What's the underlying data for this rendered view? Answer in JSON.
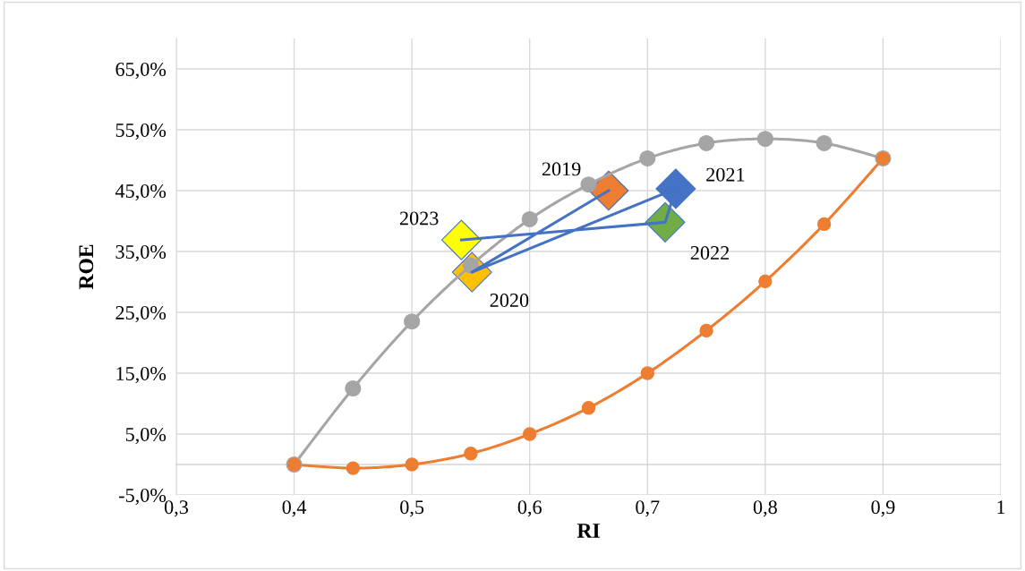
{
  "chart_data": {
    "type": "line",
    "xlabel": "RI",
    "ylabel": "ROE",
    "xlim": [
      0.3,
      1.0
    ],
    "ylim": [
      -5,
      70
    ],
    "xticks": [
      {
        "value": 0.3,
        "label": "0,3"
      },
      {
        "value": 0.4,
        "label": "0,4"
      },
      {
        "value": 0.5,
        "label": "0,5"
      },
      {
        "value": 0.6,
        "label": "0,6"
      },
      {
        "value": 0.7,
        "label": "0,7"
      },
      {
        "value": 0.8,
        "label": "0,8"
      },
      {
        "value": 0.9,
        "label": "0,9"
      },
      {
        "value": 1.0,
        "label": "1"
      }
    ],
    "yticks": [
      {
        "value": -5,
        "label": "-5,0%"
      },
      {
        "value": 5,
        "label": "5,0%"
      },
      {
        "value": 15,
        "label": "15,0%"
      },
      {
        "value": 25,
        "label": "25,0%"
      },
      {
        "value": 35,
        "label": "35,0%"
      },
      {
        "value": 45,
        "label": "45,0%"
      },
      {
        "value": 55,
        "label": "55,0%"
      },
      {
        "value": 65,
        "label": "65,0%"
      }
    ],
    "grid": true,
    "legend": false,
    "series": [
      {
        "color": "#a5a5a5",
        "marker": "circle",
        "x": [
          0.4,
          0.45,
          0.5,
          0.55,
          0.6,
          0.65,
          0.7,
          0.75,
          0.8,
          0.85,
          0.9
        ],
        "values": [
          0,
          12.5,
          23.5,
          32.7,
          40.3,
          46.0,
          50.3,
          52.8,
          53.5,
          52.8,
          50.3
        ]
      },
      {
        "color": "#ed7d31",
        "marker": "circle",
        "x": [
          0.4,
          0.45,
          0.5,
          0.55,
          0.6,
          0.65,
          0.7,
          0.75,
          0.8,
          0.85,
          0.9
        ],
        "values": [
          0,
          -0.6,
          0,
          1.8,
          5.0,
          9.3,
          15.0,
          22.0,
          30.1,
          39.5,
          50.3
        ]
      },
      {
        "color": "#4472c4",
        "marker": "diamond",
        "colors": [
          "#ed7d31",
          "#ffc000",
          "#4472c4",
          "#70ad47",
          "#ffff00"
        ],
        "x": [
          0.667,
          0.551,
          0.724,
          0.715,
          0.542
        ],
        "values": [
          45.0,
          31.6,
          45.3,
          39.8,
          36.9
        ]
      }
    ],
    "annotations": [
      {
        "text": "2019",
        "x": 0.667,
        "y": 45.0
      },
      {
        "text": "2020",
        "x": 0.551,
        "y": 31.6
      },
      {
        "text": "2021",
        "x": 0.724,
        "y": 45.3
      },
      {
        "text": "2022",
        "x": 0.715,
        "y": 39.8
      },
      {
        "text": "2023",
        "x": 0.542,
        "y": 36.9
      }
    ]
  }
}
